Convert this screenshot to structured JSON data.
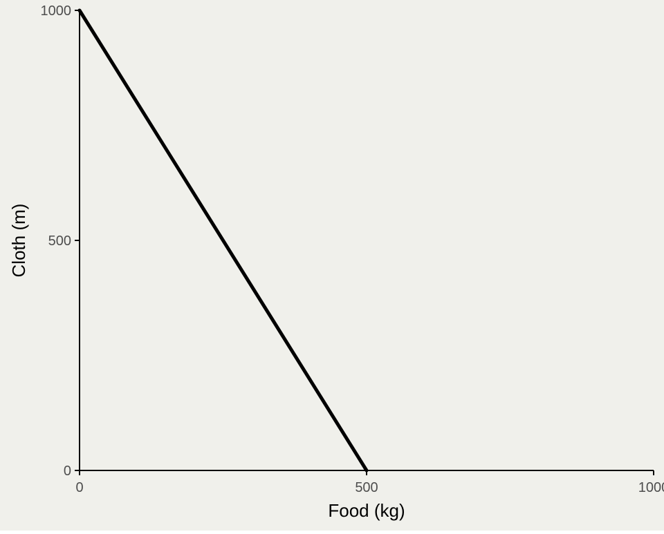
{
  "colors": {
    "background": "#f0f0eb",
    "line": "#000000",
    "axis": "#000000",
    "tick_label": "#4d4d4d"
  },
  "chart_data": {
    "type": "line",
    "title": "",
    "xlabel": "Food (kg)",
    "ylabel": "Cloth (m)",
    "xlim": [
      0,
      1000
    ],
    "ylim": [
      0,
      1000
    ],
    "x_ticks": [
      0,
      500,
      1000
    ],
    "y_ticks": [
      0,
      500,
      1000
    ],
    "x_tick_labels": [
      "0",
      "500",
      "1000"
    ],
    "y_tick_labels": [
      "0",
      "500",
      "1000"
    ],
    "grid": false,
    "legend": "none",
    "series": [
      {
        "x": [
          0,
          500
        ],
        "y": [
          1000,
          0
        ]
      }
    ]
  }
}
